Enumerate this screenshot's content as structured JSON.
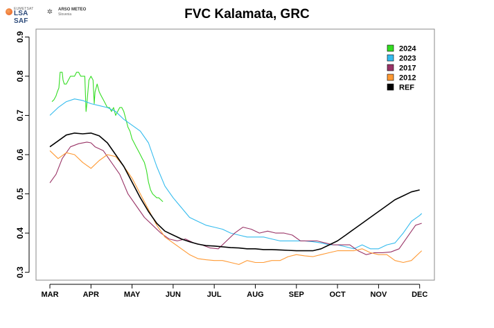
{
  "header": {
    "logo_text": "LSA SAF",
    "logo_small": "EUMETSAT",
    "arso_line1": "ARSO METEO",
    "arso_line2": "Slovenia"
  },
  "chart_data": {
    "type": "line",
    "title": "FVC Kalamata, GRC",
    "xlabel": "",
    "ylabel": "",
    "x_ticks": [
      "MAR",
      "APR",
      "MAY",
      "JUN",
      "JUL",
      "AUG",
      "SEP",
      "OCT",
      "NOV",
      "DEC"
    ],
    "y_ticks": [
      "0.3",
      "0.4",
      "0.5",
      "0.6",
      "0.7",
      "0.8",
      "0.9"
    ],
    "ylim": [
      0.28,
      0.92
    ],
    "xlim": [
      -0.05,
      9.4
    ],
    "grid": false,
    "legend_position": "top-right",
    "series": [
      {
        "name": "2024",
        "color": "#33dd22",
        "points": [
          [
            0.05,
            0.735
          ],
          [
            0.1,
            0.74
          ],
          [
            0.15,
            0.75
          ],
          [
            0.18,
            0.76
          ],
          [
            0.22,
            0.77
          ],
          [
            0.25,
            0.81
          ],
          [
            0.3,
            0.81
          ],
          [
            0.32,
            0.79
          ],
          [
            0.35,
            0.78
          ],
          [
            0.4,
            0.78
          ],
          [
            0.45,
            0.79
          ],
          [
            0.5,
            0.8
          ],
          [
            0.55,
            0.8
          ],
          [
            0.6,
            0.8
          ],
          [
            0.65,
            0.81
          ],
          [
            0.7,
            0.81
          ],
          [
            0.75,
            0.8
          ],
          [
            0.8,
            0.8
          ],
          [
            0.85,
            0.8
          ],
          [
            0.88,
            0.71
          ],
          [
            0.9,
            0.73
          ],
          [
            0.95,
            0.79
          ],
          [
            1.0,
            0.8
          ],
          [
            1.05,
            0.79
          ],
          [
            1.08,
            0.73
          ],
          [
            1.1,
            0.76
          ],
          [
            1.15,
            0.78
          ],
          [
            1.2,
            0.76
          ],
          [
            1.25,
            0.75
          ],
          [
            1.3,
            0.74
          ],
          [
            1.35,
            0.73
          ],
          [
            1.4,
            0.72
          ],
          [
            1.45,
            0.72
          ],
          [
            1.5,
            0.71
          ],
          [
            1.55,
            0.72
          ],
          [
            1.6,
            0.7
          ],
          [
            1.65,
            0.71
          ],
          [
            1.7,
            0.72
          ],
          [
            1.75,
            0.72
          ],
          [
            1.8,
            0.71
          ],
          [
            1.85,
            0.69
          ],
          [
            1.9,
            0.67
          ],
          [
            1.95,
            0.66
          ],
          [
            2.0,
            0.64
          ],
          [
            2.05,
            0.63
          ],
          [
            2.1,
            0.62
          ],
          [
            2.15,
            0.61
          ],
          [
            2.2,
            0.6
          ],
          [
            2.25,
            0.59
          ],
          [
            2.3,
            0.58
          ],
          [
            2.35,
            0.56
          ],
          [
            2.4,
            0.53
          ],
          [
            2.45,
            0.51
          ],
          [
            2.5,
            0.5
          ],
          [
            2.55,
            0.495
          ],
          [
            2.6,
            0.49
          ],
          [
            2.65,
            0.49
          ],
          [
            2.7,
            0.485
          ],
          [
            2.75,
            0.48
          ]
        ]
      },
      {
        "name": "2023",
        "color": "#33bbee",
        "points": [
          [
            0.0,
            0.7
          ],
          [
            0.2,
            0.72
          ],
          [
            0.4,
            0.735
          ],
          [
            0.6,
            0.742
          ],
          [
            0.8,
            0.738
          ],
          [
            1.0,
            0.73
          ],
          [
            1.2,
            0.725
          ],
          [
            1.4,
            0.72
          ],
          [
            1.6,
            0.71
          ],
          [
            1.8,
            0.69
          ],
          [
            2.0,
            0.675
          ],
          [
            2.2,
            0.66
          ],
          [
            2.4,
            0.63
          ],
          [
            2.6,
            0.57
          ],
          [
            2.8,
            0.52
          ],
          [
            3.0,
            0.49
          ],
          [
            3.2,
            0.465
          ],
          [
            3.4,
            0.44
          ],
          [
            3.6,
            0.43
          ],
          [
            3.8,
            0.42
          ],
          [
            4.0,
            0.415
          ],
          [
            4.2,
            0.41
          ],
          [
            4.4,
            0.4
          ],
          [
            4.6,
            0.395
          ],
          [
            4.8,
            0.39
          ],
          [
            5.0,
            0.39
          ],
          [
            5.2,
            0.39
          ],
          [
            5.4,
            0.385
          ],
          [
            5.6,
            0.38
          ],
          [
            5.8,
            0.38
          ],
          [
            6.0,
            0.38
          ],
          [
            6.2,
            0.38
          ],
          [
            6.4,
            0.378
          ],
          [
            6.6,
            0.375
          ],
          [
            6.8,
            0.37
          ],
          [
            7.0,
            0.37
          ],
          [
            7.2,
            0.365
          ],
          [
            7.4,
            0.36
          ],
          [
            7.6,
            0.37
          ],
          [
            7.8,
            0.36
          ],
          [
            8.0,
            0.36
          ],
          [
            8.2,
            0.37
          ],
          [
            8.4,
            0.375
          ],
          [
            8.6,
            0.4
          ],
          [
            8.8,
            0.43
          ],
          [
            9.0,
            0.445
          ],
          [
            9.05,
            0.45
          ]
        ]
      },
      {
        "name": "2017",
        "color": "#993366",
        "points": [
          [
            0.0,
            0.528
          ],
          [
            0.15,
            0.55
          ],
          [
            0.3,
            0.59
          ],
          [
            0.5,
            0.62
          ],
          [
            0.7,
            0.628
          ],
          [
            0.9,
            0.632
          ],
          [
            1.0,
            0.63
          ],
          [
            1.1,
            0.62
          ],
          [
            1.3,
            0.61
          ],
          [
            1.5,
            0.58
          ],
          [
            1.7,
            0.55
          ],
          [
            1.9,
            0.5
          ],
          [
            2.1,
            0.47
          ],
          [
            2.3,
            0.44
          ],
          [
            2.5,
            0.42
          ],
          [
            2.7,
            0.4
          ],
          [
            2.9,
            0.385
          ],
          [
            3.1,
            0.38
          ],
          [
            3.3,
            0.385
          ],
          [
            3.5,
            0.375
          ],
          [
            3.7,
            0.37
          ],
          [
            3.9,
            0.362
          ],
          [
            4.1,
            0.36
          ],
          [
            4.3,
            0.38
          ],
          [
            4.5,
            0.4
          ],
          [
            4.7,
            0.415
          ],
          [
            4.9,
            0.41
          ],
          [
            5.1,
            0.4
          ],
          [
            5.3,
            0.405
          ],
          [
            5.5,
            0.4
          ],
          [
            5.7,
            0.4
          ],
          [
            5.9,
            0.395
          ],
          [
            6.1,
            0.38
          ],
          [
            6.3,
            0.38
          ],
          [
            6.5,
            0.38
          ],
          [
            6.7,
            0.375
          ],
          [
            6.9,
            0.37
          ],
          [
            7.1,
            0.37
          ],
          [
            7.3,
            0.37
          ],
          [
            7.5,
            0.355
          ],
          [
            7.7,
            0.345
          ],
          [
            7.9,
            0.35
          ],
          [
            8.1,
            0.35
          ],
          [
            8.3,
            0.352
          ],
          [
            8.5,
            0.36
          ],
          [
            8.7,
            0.39
          ],
          [
            8.9,
            0.42
          ],
          [
            9.05,
            0.425
          ]
        ]
      },
      {
        "name": "2012",
        "color": "#ff9933",
        "points": [
          [
            0.0,
            0.61
          ],
          [
            0.2,
            0.59
          ],
          [
            0.4,
            0.605
          ],
          [
            0.6,
            0.6
          ],
          [
            0.8,
            0.58
          ],
          [
            1.0,
            0.565
          ],
          [
            1.2,
            0.585
          ],
          [
            1.4,
            0.6
          ],
          [
            1.6,
            0.595
          ],
          [
            1.8,
            0.57
          ],
          [
            2.0,
            0.54
          ],
          [
            2.2,
            0.5
          ],
          [
            2.4,
            0.46
          ],
          [
            2.6,
            0.42
          ],
          [
            2.8,
            0.39
          ],
          [
            3.0,
            0.375
          ],
          [
            3.2,
            0.36
          ],
          [
            3.4,
            0.345
          ],
          [
            3.6,
            0.335
          ],
          [
            3.8,
            0.332
          ],
          [
            4.0,
            0.33
          ],
          [
            4.2,
            0.33
          ],
          [
            4.4,
            0.325
          ],
          [
            4.6,
            0.32
          ],
          [
            4.8,
            0.33
          ],
          [
            5.0,
            0.325
          ],
          [
            5.2,
            0.325
          ],
          [
            5.4,
            0.33
          ],
          [
            5.6,
            0.33
          ],
          [
            5.8,
            0.34
          ],
          [
            6.0,
            0.345
          ],
          [
            6.2,
            0.342
          ],
          [
            6.4,
            0.34
          ],
          [
            6.6,
            0.345
          ],
          [
            6.8,
            0.35
          ],
          [
            7.0,
            0.355
          ],
          [
            7.2,
            0.355
          ],
          [
            7.4,
            0.355
          ],
          [
            7.6,
            0.36
          ],
          [
            7.8,
            0.35
          ],
          [
            8.0,
            0.345
          ],
          [
            8.2,
            0.345
          ],
          [
            8.4,
            0.33
          ],
          [
            8.6,
            0.325
          ],
          [
            8.8,
            0.33
          ],
          [
            9.0,
            0.35
          ],
          [
            9.05,
            0.355
          ]
        ]
      },
      {
        "name": "REF",
        "color": "#000000",
        "points": [
          [
            0.0,
            0.62
          ],
          [
            0.2,
            0.635
          ],
          [
            0.4,
            0.65
          ],
          [
            0.6,
            0.655
          ],
          [
            0.8,
            0.653
          ],
          [
            1.0,
            0.655
          ],
          [
            1.2,
            0.648
          ],
          [
            1.4,
            0.63
          ],
          [
            1.6,
            0.6
          ],
          [
            1.8,
            0.57
          ],
          [
            2.0,
            0.53
          ],
          [
            2.2,
            0.49
          ],
          [
            2.4,
            0.455
          ],
          [
            2.6,
            0.425
          ],
          [
            2.8,
            0.405
          ],
          [
            3.0,
            0.395
          ],
          [
            3.2,
            0.385
          ],
          [
            3.4,
            0.378
          ],
          [
            3.6,
            0.372
          ],
          [
            3.8,
            0.368
          ],
          [
            4.0,
            0.367
          ],
          [
            4.2,
            0.365
          ],
          [
            4.4,
            0.363
          ],
          [
            4.6,
            0.362
          ],
          [
            4.8,
            0.36
          ],
          [
            5.0,
            0.36
          ],
          [
            5.2,
            0.358
          ],
          [
            5.4,
            0.358
          ],
          [
            5.6,
            0.357
          ],
          [
            5.8,
            0.356
          ],
          [
            6.0,
            0.355
          ],
          [
            6.2,
            0.355
          ],
          [
            6.4,
            0.355
          ],
          [
            6.6,
            0.36
          ],
          [
            6.8,
            0.37
          ],
          [
            7.0,
            0.38
          ],
          [
            7.2,
            0.395
          ],
          [
            7.4,
            0.41
          ],
          [
            7.6,
            0.425
          ],
          [
            7.8,
            0.44
          ],
          [
            8.0,
            0.455
          ],
          [
            8.2,
            0.47
          ],
          [
            8.4,
            0.485
          ],
          [
            8.6,
            0.495
          ],
          [
            8.8,
            0.505
          ],
          [
            9.0,
            0.51
          ]
        ]
      }
    ]
  }
}
